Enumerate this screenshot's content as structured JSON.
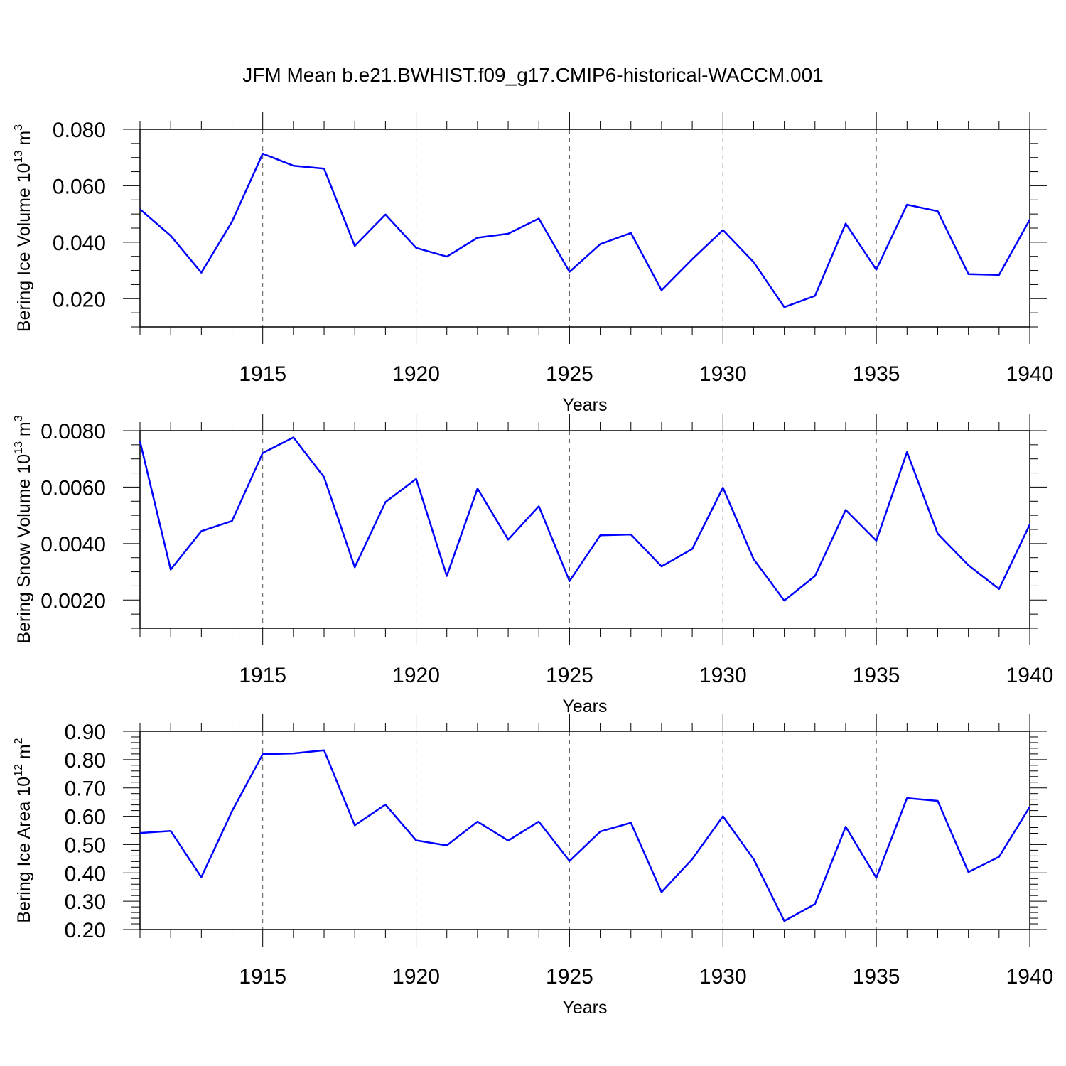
{
  "title": "JFM Mean b.e21.BWHIST.f09_g17.CMIP6-historical-WACCM.001",
  "line_color": "#0000ff",
  "chart_data": [
    {
      "type": "line",
      "ylabel": "Bering Ice Volume 10",
      "ylabel_sup": "13",
      "ylabel_unit": " m",
      "ylabel_unit_sup": "3",
      "xlabel": "Years",
      "xlim": [
        1911,
        1940
      ],
      "ylim": [
        0.01,
        0.08
      ],
      "yticks": [
        0.02,
        0.04,
        0.06,
        0.08
      ],
      "ytick_labels": [
        "0.020",
        "0.040",
        "0.060",
        "0.080"
      ],
      "xticks": [
        1915,
        1920,
        1925,
        1930,
        1935,
        1940
      ],
      "xtick_labels": [
        "1915",
        "1920",
        "1925",
        "1930",
        "1935",
        "1940"
      ],
      "grid": "vertical-dashed",
      "series": [
        {
          "x": [
            1911,
            1912,
            1913,
            1914,
            1915,
            1916,
            1917,
            1918,
            1919,
            1920,
            1921,
            1922,
            1923,
            1924,
            1925,
            1926,
            1927,
            1928,
            1929,
            1930,
            1931,
            1932,
            1933,
            1934,
            1935,
            1936,
            1937,
            1938,
            1939,
            1940
          ],
          "values": [
            0.0517,
            0.0423,
            0.0292,
            0.0473,
            0.0714,
            0.0671,
            0.0661,
            0.0387,
            0.0498,
            0.038,
            0.0349,
            0.0416,
            0.043,
            0.0484,
            0.0295,
            0.0393,
            0.0433,
            0.023,
            0.034,
            0.0443,
            0.033,
            0.017,
            0.021,
            0.0466,
            0.0303,
            0.0533,
            0.051,
            0.0287,
            0.0284,
            0.048
          ]
        }
      ]
    },
    {
      "type": "line",
      "ylabel": "Bering Snow Volume 10",
      "ylabel_sup": "13",
      "ylabel_unit": " m",
      "ylabel_unit_sup": "3",
      "xlabel": "Years",
      "xlim": [
        1911,
        1940
      ],
      "ylim": [
        0.001,
        0.008
      ],
      "yticks": [
        0.002,
        0.004,
        0.006,
        0.008
      ],
      "ytick_labels": [
        "0.0020",
        "0.0040",
        "0.0060",
        "0.0080"
      ],
      "xticks": [
        1915,
        1920,
        1925,
        1930,
        1935,
        1940
      ],
      "xtick_labels": [
        "1915",
        "1920",
        "1925",
        "1930",
        "1935",
        "1940"
      ],
      "grid": "vertical-dashed",
      "series": [
        {
          "x": [
            1911,
            1912,
            1913,
            1914,
            1915,
            1916,
            1917,
            1918,
            1919,
            1920,
            1921,
            1922,
            1923,
            1924,
            1925,
            1926,
            1927,
            1928,
            1929,
            1930,
            1931,
            1932,
            1933,
            1934,
            1935,
            1936,
            1937,
            1938,
            1939,
            1940
          ],
          "values": [
            0.00762,
            0.00308,
            0.00444,
            0.0048,
            0.00721,
            0.00776,
            0.00635,
            0.00316,
            0.00547,
            0.00629,
            0.00285,
            0.00595,
            0.00414,
            0.00532,
            0.00267,
            0.00429,
            0.00432,
            0.00319,
            0.00381,
            0.00598,
            0.00345,
            0.00198,
            0.00285,
            0.00519,
            0.0041,
            0.00724,
            0.00435,
            0.00323,
            0.00239,
            0.00467
          ]
        }
      ]
    },
    {
      "type": "line",
      "ylabel": "Bering Ice Area 10",
      "ylabel_sup": "12",
      "ylabel_unit": " m",
      "ylabel_unit_sup": "2",
      "xlabel": "Years",
      "xlim": [
        1911,
        1940
      ],
      "ylim": [
        0.2,
        0.9
      ],
      "yticks": [
        0.2,
        0.3,
        0.4,
        0.5,
        0.6,
        0.7,
        0.8,
        0.9
      ],
      "ytick_labels": [
        "0.20",
        "0.30",
        "0.40",
        "0.50",
        "0.60",
        "0.70",
        "0.80",
        "0.90"
      ],
      "xticks": [
        1915,
        1920,
        1925,
        1930,
        1935,
        1940
      ],
      "xtick_labels": [
        "1915",
        "1920",
        "1925",
        "1930",
        "1935",
        "1940"
      ],
      "grid": "vertical-dashed",
      "series": [
        {
          "x": [
            1911,
            1912,
            1913,
            1914,
            1915,
            1916,
            1917,
            1918,
            1919,
            1920,
            1921,
            1922,
            1923,
            1924,
            1925,
            1926,
            1927,
            1928,
            1929,
            1930,
            1931,
            1932,
            1933,
            1934,
            1935,
            1936,
            1937,
            1938,
            1939,
            1940
          ],
          "values": [
            0.541,
            0.548,
            0.385,
            0.618,
            0.819,
            0.822,
            0.833,
            0.568,
            0.641,
            0.515,
            0.497,
            0.581,
            0.514,
            0.581,
            0.442,
            0.546,
            0.577,
            0.332,
            0.449,
            0.6,
            0.449,
            0.23,
            0.29,
            0.563,
            0.383,
            0.664,
            0.654,
            0.403,
            0.457,
            0.633
          ]
        }
      ]
    }
  ]
}
